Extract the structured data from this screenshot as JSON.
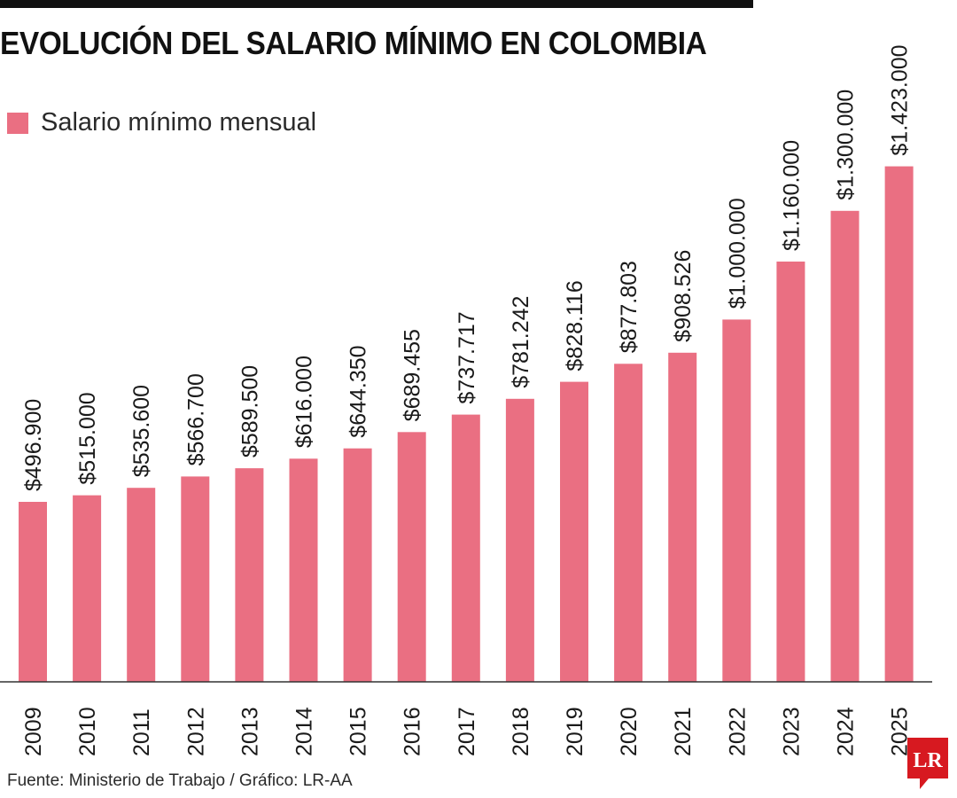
{
  "title": "EVOLUCIÓN DEL SALARIO MÍNIMO EN COLOMBIA",
  "legend": {
    "label": "Salario mínimo mensual",
    "color": "#ea6f82"
  },
  "source": "Fuente: Ministerio de Trabajo / Gráfico: LR-AA",
  "logo_text": "LR",
  "logo_color": "#d71920",
  "chart_data": {
    "type": "bar",
    "categories": [
      "2009",
      "2010",
      "2011",
      "2012",
      "2013",
      "2014",
      "2015",
      "2016",
      "2017",
      "2018",
      "2019",
      "2020",
      "2021",
      "2022",
      "2023",
      "2024",
      "2025"
    ],
    "series": [
      {
        "name": "Salario mínimo mensual",
        "color": "#ea6f82",
        "values": [
          496900,
          515000,
          535600,
          566700,
          589500,
          616000,
          644350,
          689455,
          737717,
          781242,
          828116,
          877803,
          908526,
          1000000,
          1160000,
          1300000,
          1423000
        ],
        "value_labels": [
          "$496.900",
          "$515.000",
          "$535.600",
          "$566.700",
          "$589.500",
          "$616.000",
          "$644.350",
          "$689.455",
          "$737.717",
          "$781.242",
          "$828.116",
          "$877.803",
          "$908.526",
          "$1.000.000",
          "$1.160.000",
          "$1.300.000",
          "$1.423.000"
        ]
      }
    ],
    "title": "EVOLUCIÓN DEL SALARIO MÍNIMO EN COLOMBIA",
    "xlabel": "",
    "ylabel": "",
    "ylim": [
      0,
      1600000
    ],
    "grid": false,
    "legend_position": "top-left",
    "label_orientation": "vertical"
  }
}
